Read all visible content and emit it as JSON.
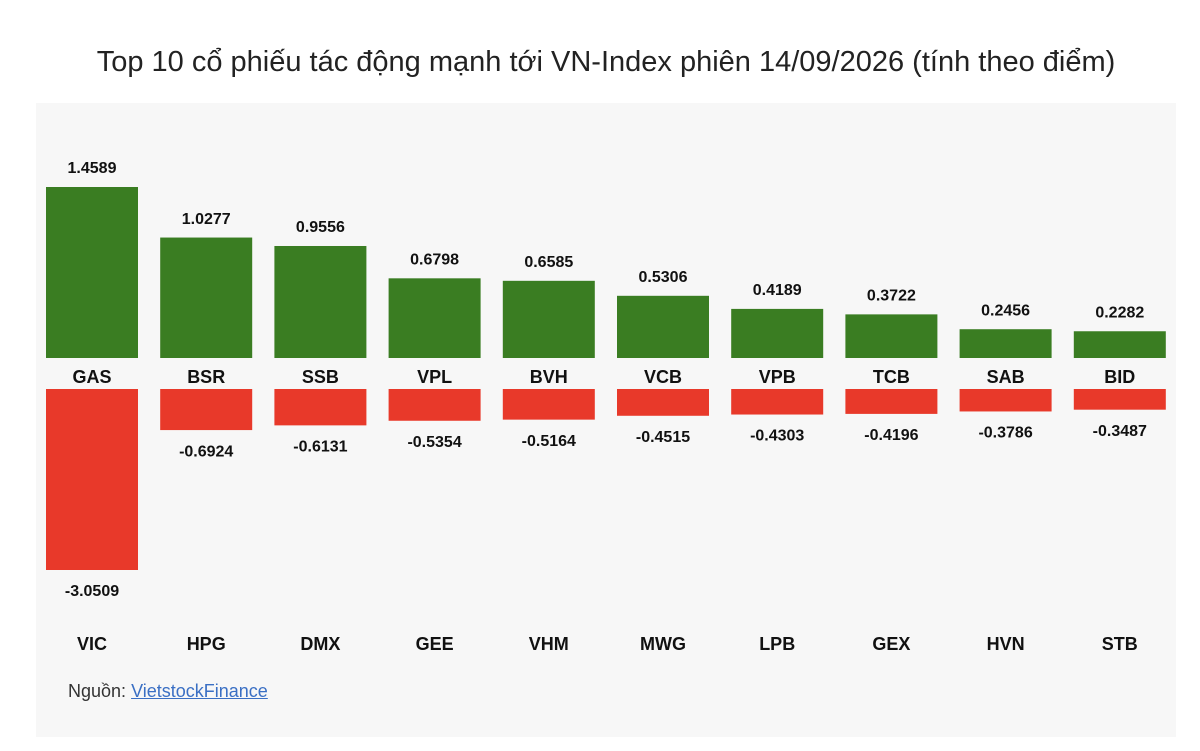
{
  "chart_data": {
    "type": "bar",
    "title": "Top 10 cổ phiếu tác động mạnh tới VN-Index phiên 14/09/2026 (tính theo điểm)",
    "series": [
      {
        "color": "#3a7d22",
        "categories": [
          "GAS",
          "BSR",
          "SSB",
          "VPL",
          "BVH",
          "VCB",
          "VPB",
          "TCB",
          "SAB",
          "BID"
        ],
        "values": [
          1.4589,
          1.0277,
          0.9556,
          0.6798,
          0.6585,
          0.5306,
          0.4189,
          0.3722,
          0.2456,
          0.2282
        ]
      },
      {
        "color": "#e8392a",
        "categories": [
          "VIC",
          "HPG",
          "DMX",
          "GEE",
          "VHM",
          "MWG",
          "LPB",
          "GEX",
          "HVN",
          "STB"
        ],
        "values": [
          -3.0509,
          -0.6924,
          -0.6131,
          -0.5354,
          -0.5164,
          -0.4515,
          -0.4303,
          -0.4196,
          -0.3786,
          -0.3487
        ]
      }
    ],
    "source_label": "Nguồn:",
    "source_link": "VietstockFinance"
  }
}
